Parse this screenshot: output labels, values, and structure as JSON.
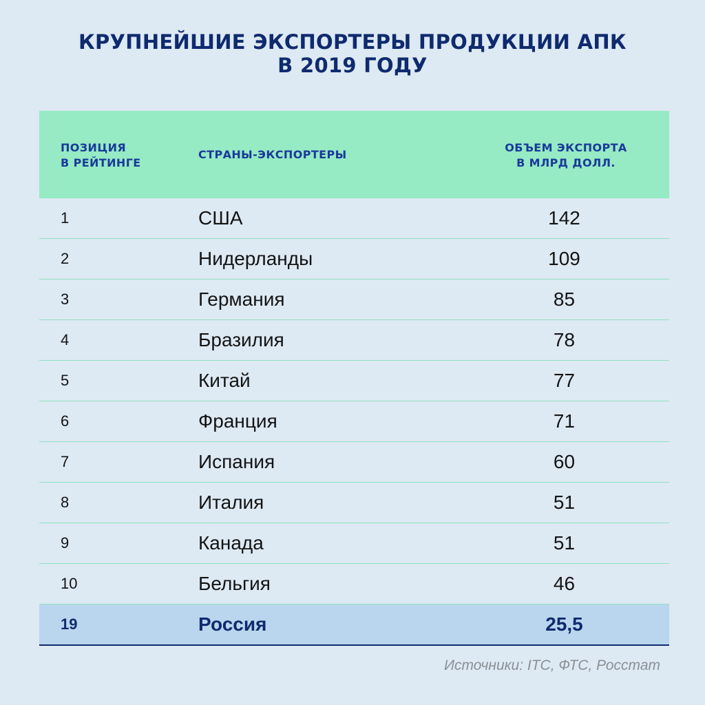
{
  "title": {
    "line1": "КРУПНЕЙШИЕ ЭКСПОРТЕРЫ ПРОДУКЦИИ АПК",
    "line2": "В 2019 ГОДУ"
  },
  "headers": {
    "position": [
      "ПОЗИЦИЯ",
      "В РЕЙТИНГЕ"
    ],
    "country": "СТРАНЫ-ЭКСПОРТЕРЫ",
    "volume": [
      "ОБЪЕМ ЭКСПОРТА",
      "В МЛРД ДОЛЛ."
    ]
  },
  "rows": [
    {
      "rank": "1",
      "country": "США",
      "value": "142"
    },
    {
      "rank": "2",
      "country": "Нидерланды",
      "value": "109"
    },
    {
      "rank": "3",
      "country": "Германия",
      "value": "85"
    },
    {
      "rank": "4",
      "country": "Бразилия",
      "value": "78"
    },
    {
      "rank": "5",
      "country": "Китай",
      "value": "77"
    },
    {
      "rank": "6",
      "country": "Франция",
      "value": "71"
    },
    {
      "rank": "7",
      "country": "Испания",
      "value": "60"
    },
    {
      "rank": "8",
      "country": "Италия",
      "value": "51"
    },
    {
      "rank": "9",
      "country": "Канада",
      "value": "51"
    },
    {
      "rank": "10",
      "country": "Бельгия",
      "value": "46"
    }
  ],
  "highlight_row": {
    "rank": "19",
    "country": "Россия",
    "value": "25,5"
  },
  "source": "Источники: ITC, ФТС, Росстат",
  "colors": {
    "background": "#dde9f3",
    "header_bg": "#96eac4",
    "header_text": "#1a3a9a",
    "title_text": "#0f2a6e",
    "highlight_bg": "#bad6ee",
    "divider": "#8fe2c0"
  },
  "chart_data": {
    "type": "table",
    "title": "КРУПНЕЙШИЕ ЭКСПОРТЕРЫ ПРОДУКЦИИ АПК В 2019 ГОДУ",
    "columns": [
      "ПОЗИЦИЯ В РЕЙТИНГЕ",
      "СТРАНЫ-ЭКСПОРТЕРЫ",
      "ОБЪЕМ ЭКСПОРТА В МЛРД ДОЛЛ."
    ],
    "rows": [
      [
        1,
        "США",
        142
      ],
      [
        2,
        "Нидерланды",
        109
      ],
      [
        3,
        "Германия",
        85
      ],
      [
        4,
        "Бразилия",
        78
      ],
      [
        5,
        "Китай",
        77
      ],
      [
        6,
        "Франция",
        71
      ],
      [
        7,
        "Испания",
        60
      ],
      [
        8,
        "Италия",
        51
      ],
      [
        9,
        "Канада",
        51
      ],
      [
        10,
        "Бельгия",
        46
      ],
      [
        19,
        "Россия",
        25.5
      ]
    ],
    "highlighted_row": "Россия"
  }
}
